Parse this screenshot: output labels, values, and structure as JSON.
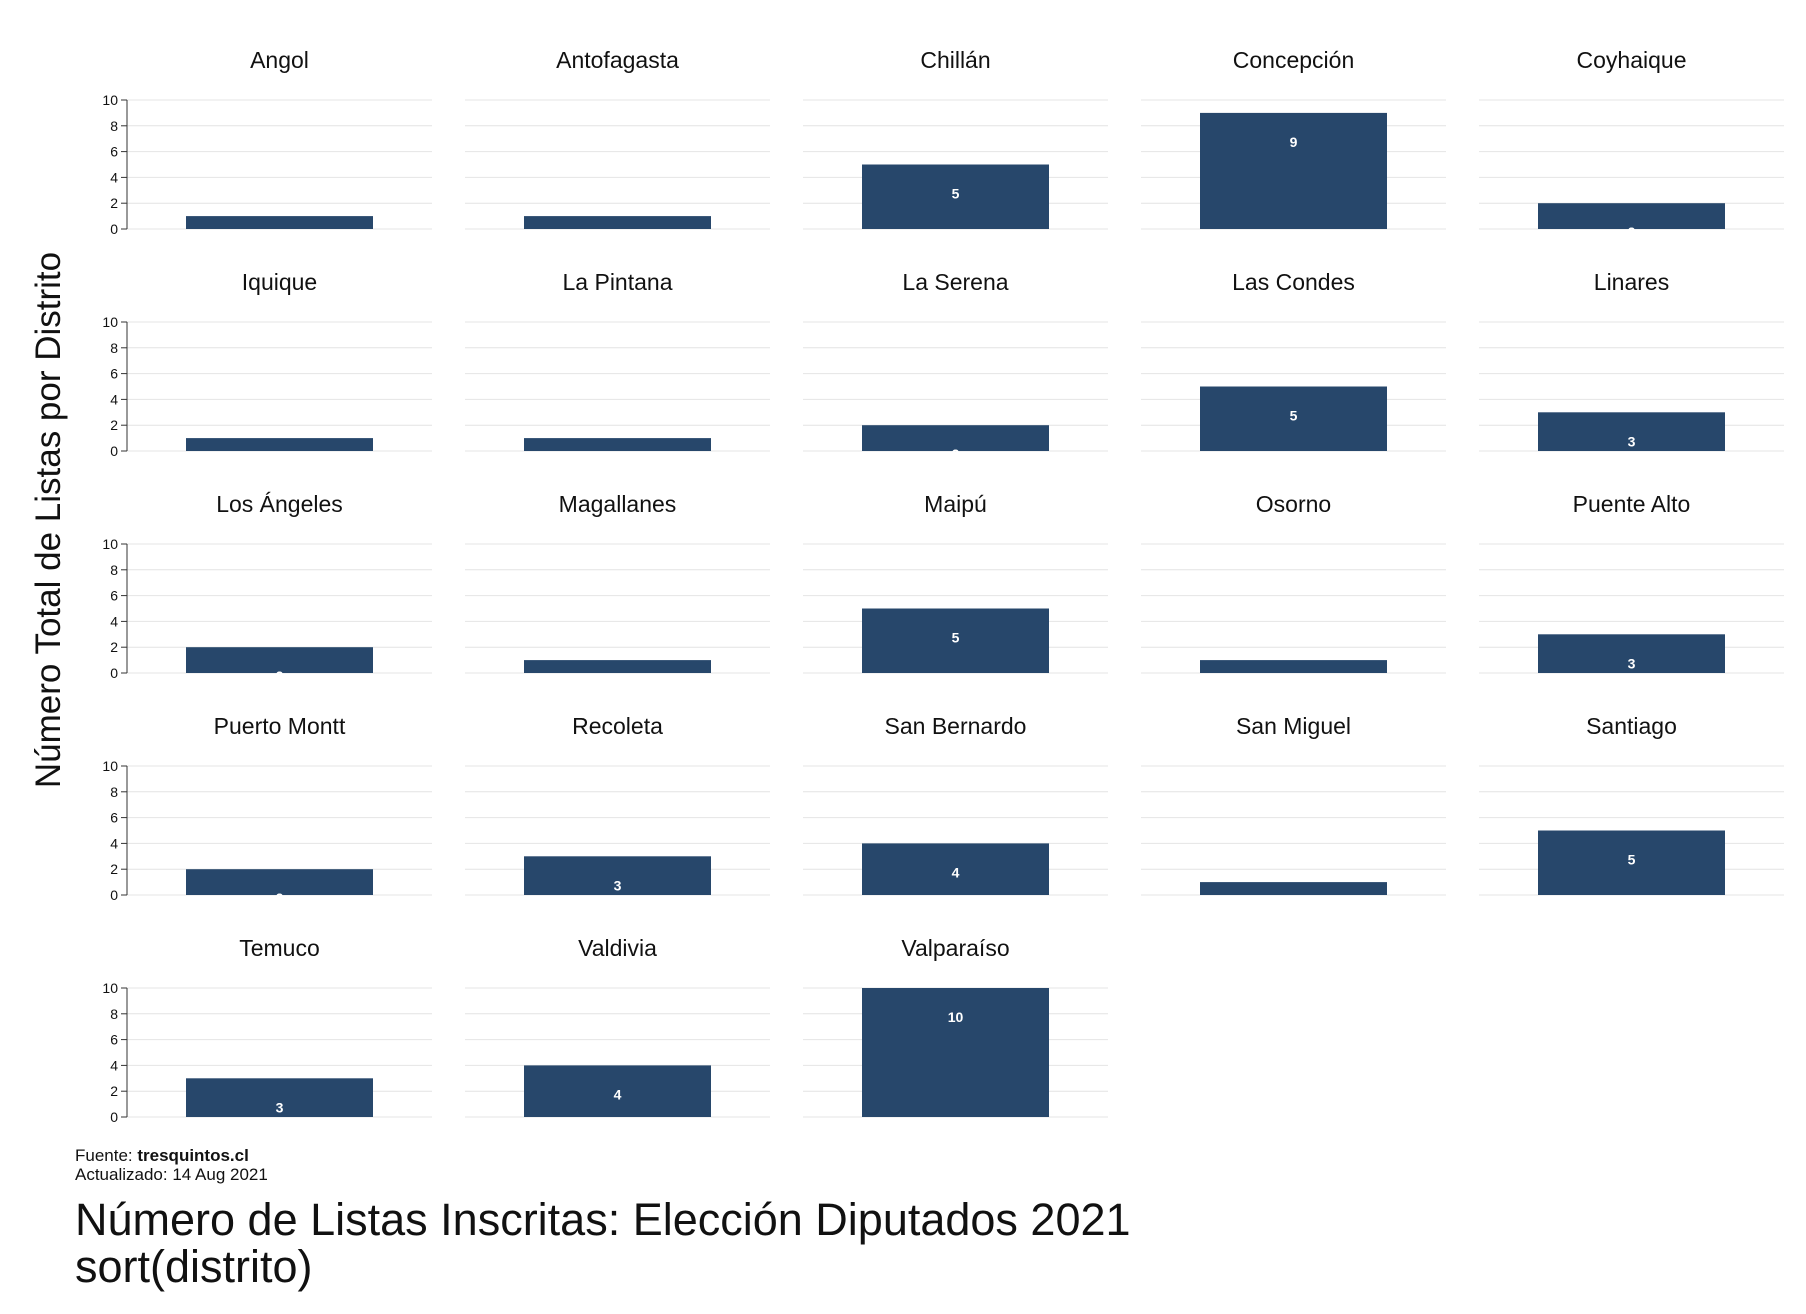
{
  "chart_data": {
    "type": "bar",
    "ylabel": "Número Total de Listas por Distrito",
    "ylim": [
      0,
      10
    ],
    "yticks": [
      0,
      2,
      4,
      6,
      8,
      10
    ],
    "grid": true,
    "bar_color": "#27476b",
    "panels": [
      {
        "name": "Angol",
        "value": 1
      },
      {
        "name": "Antofagasta",
        "value": 1
      },
      {
        "name": "Chillán",
        "value": 5
      },
      {
        "name": "Concepción",
        "value": 9
      },
      {
        "name": "Coyhaique",
        "value": 2
      },
      {
        "name": "Iquique",
        "value": 1
      },
      {
        "name": "La Pintana",
        "value": 1
      },
      {
        "name": "La Serena",
        "value": 2
      },
      {
        "name": "Las Condes",
        "value": 5
      },
      {
        "name": "Linares",
        "value": 3
      },
      {
        "name": "Los Ángeles",
        "value": 2
      },
      {
        "name": "Magallanes",
        "value": 1
      },
      {
        "name": "Maipú",
        "value": 5
      },
      {
        "name": "Osorno",
        "value": 1
      },
      {
        "name": "Puente Alto",
        "value": 3
      },
      {
        "name": "Puerto Montt",
        "value": 2
      },
      {
        "name": "Recoleta",
        "value": 3
      },
      {
        "name": "San Bernardo",
        "value": 4
      },
      {
        "name": "San Miguel",
        "value": 1
      },
      {
        "name": "Santiago",
        "value": 5
      },
      {
        "name": "Temuco",
        "value": 3
      },
      {
        "name": "Valdivia",
        "value": 4
      },
      {
        "name": "Valparaíso",
        "value": 10
      }
    ],
    "note": {
      "source_prefix": "Fuente: ",
      "source": "tresquintos.cl",
      "updated": "Actualizado: 14 Aug 2021"
    },
    "title": "Número de Listas Inscritas: Elección Diputados 2021",
    "subtitle": "sort(distrito)"
  }
}
